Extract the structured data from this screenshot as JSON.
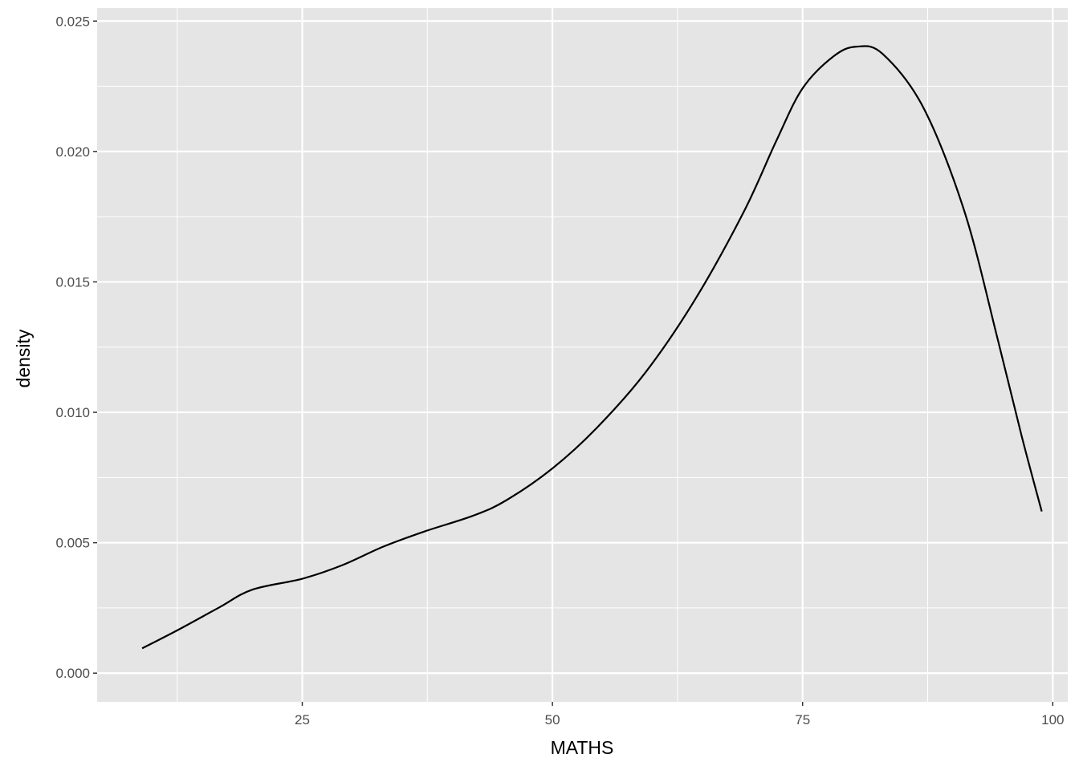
{
  "chart_data": {
    "type": "line",
    "title": "",
    "xlabel": "MATHS",
    "ylabel": "density",
    "xlim": [
      4.5,
      101.5
    ],
    "ylim": [
      -0.0011,
      0.0255
    ],
    "grid": true,
    "x_ticks": [
      25,
      50,
      75,
      100
    ],
    "x_tick_labels": [
      "25",
      "50",
      "75",
      "100"
    ],
    "y_ticks": [
      0,
      0.005,
      0.01,
      0.015,
      0.02,
      0.025
    ],
    "y_tick_labels": [
      "0.000",
      "0.005",
      "0.010",
      "0.015",
      "0.020",
      "0.025"
    ],
    "line_color": "#000000",
    "panel_color": "#e5e5e5",
    "series": [
      {
        "x": [
          9.0,
          12.6,
          16.7,
          20.0,
          25.0,
          29.0,
          33.1,
          37.2,
          42.1,
          45.4,
          50.0,
          54.4,
          59.3,
          64.2,
          69.1,
          72.4,
          75.0,
          78.1,
          80.4,
          83.0,
          87.1,
          91.2,
          94.5,
          96.9,
          98.9
        ],
        "y": [
          0.00095,
          0.00166,
          0.00252,
          0.0032,
          0.00362,
          0.00414,
          0.00485,
          0.00543,
          0.00604,
          0.00663,
          0.00785,
          0.00939,
          0.01153,
          0.01429,
          0.01767,
          0.02043,
          0.02242,
          0.02365,
          0.02402,
          0.02374,
          0.02166,
          0.01767,
          0.0128,
          0.00908,
          0.0062
        ]
      }
    ]
  }
}
